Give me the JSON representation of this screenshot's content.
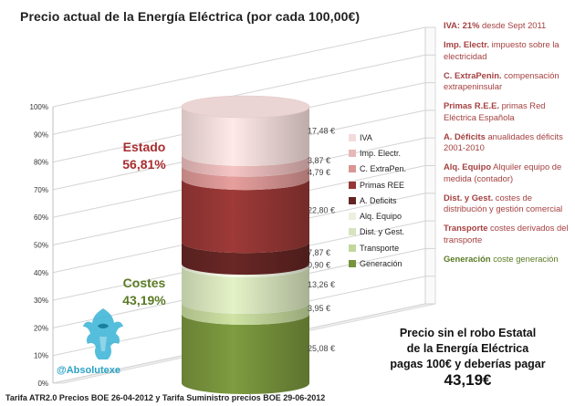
{
  "title": "Precio actual de la Energía Eléctrica (por cada 100,00€)",
  "chart_data": {
    "type": "bar",
    "stacked": true,
    "three_d": true,
    "categories": [
      ""
    ],
    "ylim": [
      0,
      100
    ],
    "yticks": [
      "0%",
      "10%",
      "20%",
      "30%",
      "40%",
      "50%",
      "60%",
      "70%",
      "80%",
      "90%",
      "100%"
    ],
    "series": [
      {
        "name": "Generación",
        "value": 25.08,
        "label": "25,08 €",
        "color": "#77933c"
      },
      {
        "name": "Transporte",
        "value": 3.95,
        "label": "3,95 €",
        "color": "#c3d69b"
      },
      {
        "name": "Dist. y Gest.",
        "value": 13.26,
        "label": "13,26 €",
        "color": "#d7e4bd"
      },
      {
        "name": "Alq. Equipo",
        "value": 0.9,
        "label": "0,90 €",
        "color": "#ebf1de"
      },
      {
        "name": "A. Deficits",
        "value": 7.87,
        "label": "7,87 €",
        "color": "#632523"
      },
      {
        "name": "Primas REE",
        "value": 22.8,
        "label": "22,80 €",
        "color": "#953735"
      },
      {
        "name": "C. ExtraPen.",
        "value": 4.79,
        "label": "4,79 €",
        "color": "#d99694"
      },
      {
        "name": "Imp. Electr.",
        "value": 3.87,
        "label": "3,87 €",
        "color": "#e6b9b8"
      },
      {
        "name": "IVA",
        "value": 17.48,
        "label": "17,48 €",
        "color": "#f2dcdb"
      }
    ],
    "groups": [
      {
        "name": "Estado",
        "pct": "56,81%"
      },
      {
        "name": "Costes",
        "pct": "43,19%"
      }
    ],
    "legend_order": [
      "IVA",
      "Imp. Electr.",
      "C. ExtraPen.",
      "Primas REE",
      "A. Deficits",
      "Alq. Equipo",
      "Dist. y Gest.",
      "Transporte",
      "Generación"
    ]
  },
  "info": [
    {
      "term": "IVA: 21%",
      "desc": " desde Sept 2011",
      "type": "estado"
    },
    {
      "term": "Imp. Electr.",
      "desc": "  impuesto sobre la electricidad",
      "type": "estado"
    },
    {
      "term": "C. ExtraPenin.",
      "desc": " compensación extrapeninsular",
      "type": "estado"
    },
    {
      "term": "Primas R.E.E.",
      "desc": " primas Red Eléctrica Española",
      "type": "estado"
    },
    {
      "term": "A. Déficits",
      "desc": " anualidades déficits 2001-2010",
      "type": "estado"
    },
    {
      "term": "Alq. Equipo",
      "desc": " Alquiler equipo de medida (contador)",
      "type": "estado"
    },
    {
      "term": "Dist. y Gest.",
      "desc": " costes de distribución y gestión comercial",
      "type": "estado"
    },
    {
      "term": "Transporte",
      "desc": " costes derivados del transporte",
      "type": "estado"
    },
    {
      "term": "Generación",
      "desc": " coste generación",
      "type": "gen"
    }
  ],
  "conclusion": {
    "line1": "Precio sin el robo Estatal",
    "line2": "de la Energía Eléctrica",
    "line3": "pagas 100€ y deberías pagar ",
    "value": "43,19€"
  },
  "brand": "@Absolutexe",
  "footer": "Tarifa ATR2.0 Precios BOE 26-04-2012 y Tarifa Suministro precios BOE 29-06-2012"
}
